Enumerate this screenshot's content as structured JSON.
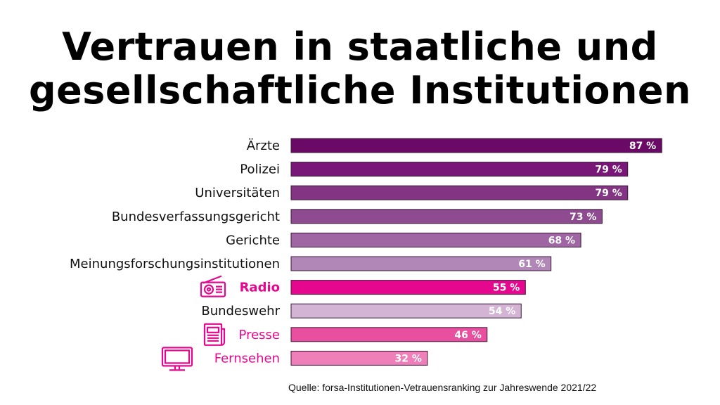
{
  "title_line1": "Vertrauen in staatliche und",
  "title_line2": "gesellschaftliche Institutionen",
  "source": "Quelle: forsa-Institutionen-Vetrauensranking zur Jahreswende 2021/22",
  "chart_data": {
    "type": "bar",
    "orientation": "horizontal",
    "unit": "%",
    "categories": [
      "Ärzte",
      "Polizei",
      "Universitäten",
      "Bundesverfassungsgericht",
      "Gerichte",
      "Meinungsforschungsinstitutionen",
      "Radio",
      "Bundeswehr",
      "Presse",
      "Fernsehen"
    ],
    "values": [
      87,
      79,
      79,
      73,
      68,
      61,
      55,
      54,
      46,
      32
    ],
    "data_labels": [
      "87 %",
      "79 %",
      "79 %",
      "73 %",
      "68 %",
      "61 %",
      "55 %",
      "54 %",
      "46 %",
      "32 %"
    ],
    "bar_colors": [
      "#6b0a66",
      "#781777",
      "#833583",
      "#8f4b90",
      "#a066a4",
      "#b187b7",
      "#e5078d",
      "#d3b4d5",
      "#e8509f",
      "#ee7fb8"
    ],
    "label_colors": [
      "#111111",
      "#111111",
      "#111111",
      "#111111",
      "#111111",
      "#111111",
      "#e5078d",
      "#111111",
      "#e5078d",
      "#e5078d"
    ],
    "label_bold": [
      false,
      false,
      false,
      false,
      false,
      false,
      true,
      false,
      false,
      false
    ],
    "category_icons": [
      null,
      null,
      null,
      null,
      null,
      null,
      "radio-icon",
      null,
      "newspaper-icon",
      "tv-icon"
    ],
    "grid": false,
    "legend": "none"
  }
}
